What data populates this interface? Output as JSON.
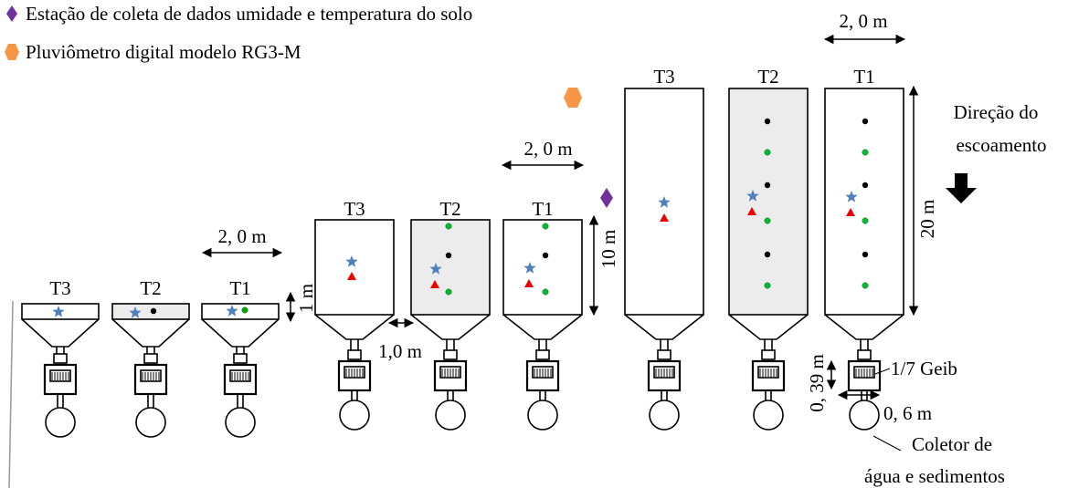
{
  "legend": [
    {
      "label": "Estação de coleta de dados umidade e temperatura do solo"
    },
    {
      "label": "Pluviômetro digital modelo RG3-M"
    }
  ],
  "groups": [
    {
      "plots": [
        "T3",
        "T2",
        "T1"
      ],
      "width_label": "2, 0 m",
      "length_label": "1 m"
    },
    {
      "plots": [
        "T3",
        "T2",
        "T1"
      ],
      "width_label": "2, 0 m",
      "length_label": "10 m"
    },
    {
      "plots": [
        "T3",
        "T2",
        "T1"
      ],
      "width_label": "2, 0 m",
      "length_label": "20 m"
    }
  ],
  "spacing_label": "1,0 m",
  "flow_label": [
    "Direção do",
    "escoamento"
  ],
  "tank_height_label": "0, 39 m",
  "divisor_label": "1/7 Geib",
  "tank_width_label": "0, 6 m",
  "collector_label": [
    "Coletor de",
    "água e sedimentos"
  ]
}
